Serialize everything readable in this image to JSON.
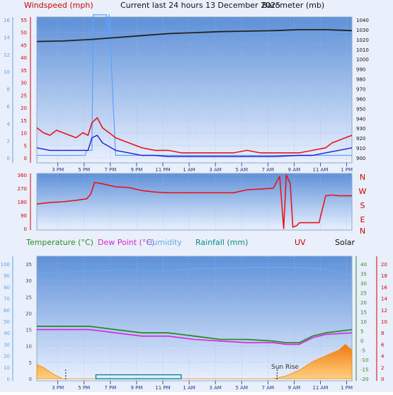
{
  "header": {
    "windspeed_label": "Windspeed (mph)",
    "title": "Current last 24 hours 13 December 2025",
    "barometer_label": "Barometer (mb)"
  },
  "legend2": {
    "temperature": "Temperature (°C)",
    "dewpoint": "Dew Point (°C)",
    "humidity": "Humidity",
    "rainfall": "Rainfall (mm)",
    "uv": "UV",
    "solar": "Solar",
    "sunrise": "Sun Rise"
  },
  "colors": {
    "bg": "#e9f0fb",
    "plot_top": "#5b8fd8",
    "plot_bottom": "#e9f0ff",
    "wind_gust": "#e8141c",
    "wind_avg": "#1a1adc",
    "wind_light": "#5aa0ff",
    "barometer": "#222222",
    "direction": "#e8141c",
    "temperature": "#2a8a2a",
    "dewpoint": "#dd22dd",
    "humidity": "#66a8ee",
    "rainfall": "#0a8a8a",
    "solar": "#f08a10",
    "axis_red": "#d00000",
    "axis_blue": "#5aa0ff",
    "axis_time": "#1a3fa0"
  },
  "chart_data": [
    {
      "type": "line",
      "name": "wind_barometer",
      "x_ticks": [
        "3 PM",
        "5 PM",
        "7 PM",
        "9 PM",
        "11 PM",
        "1 AM",
        "3 AM",
        "5 AM",
        "7 AM",
        "9 AM",
        "11 AM",
        "1 PM"
      ],
      "y_left_outer": {
        "color": "blue",
        "ticks": [
          0,
          2,
          4,
          6,
          8,
          10,
          12,
          14,
          16
        ]
      },
      "y_left_inner": {
        "color": "red",
        "ticks": [
          0,
          5,
          10,
          15,
          20,
          25,
          30,
          35,
          40,
          45,
          50,
          55
        ]
      },
      "y_right": {
        "ticks": [
          900,
          910,
          920,
          930,
          940,
          950,
          960,
          970,
          980,
          990,
          1000,
          1010,
          1020,
          1030,
          1040
        ]
      },
      "series": [
        {
          "key": "barometer",
          "x": [
            0,
            2,
            4,
            6,
            8,
            10,
            12,
            14,
            16,
            18,
            20,
            22,
            24
          ],
          "y": [
            1018,
            1018.5,
            1020,
            1022,
            1024,
            1026,
            1027,
            1028,
            1028.5,
            1029,
            1030,
            1030,
            1029
          ]
        },
        {
          "key": "gust",
          "x": [
            0,
            0.5,
            1,
            1.5,
            2,
            2.5,
            3,
            3.5,
            3.9,
            4.2,
            4.6,
            5,
            5.5,
            6,
            6.5,
            7,
            8,
            9,
            10,
            11,
            12,
            13,
            14,
            15,
            16,
            17,
            18,
            19,
            20,
            21,
            22,
            22.5,
            23,
            23.5,
            24
          ],
          "y": [
            12,
            10,
            9,
            11,
            10,
            9,
            8,
            10,
            9,
            14,
            16,
            12,
            10,
            8,
            7,
            6,
            4,
            3,
            3,
            2,
            2,
            2,
            2,
            2,
            3,
            2,
            2,
            2,
            2,
            3,
            4,
            6,
            7,
            8,
            9
          ]
        },
        {
          "key": "average",
          "x": [
            0,
            1,
            2,
            3,
            3.9,
            4.2,
            4.6,
            5,
            6,
            7,
            8,
            9,
            10,
            12,
            14,
            16,
            18,
            20,
            21,
            22,
            23,
            24
          ],
          "y": [
            4,
            3,
            3,
            3,
            3,
            8,
            9,
            6,
            3,
            2,
            1,
            1,
            0.5,
            0.5,
            0.5,
            0.5,
            0.5,
            1,
            1,
            2,
            3,
            4
          ]
        },
        {
          "key": "light_blue",
          "x": [
            0,
            3.7,
            3.8,
            4.2,
            4.3,
            4.4,
            5.3,
            5.4,
            5.5,
            6,
            24
          ],
          "y": [
            1,
            1,
            3,
            3,
            57,
            57,
            57,
            47,
            57,
            1,
            1
          ]
        }
      ]
    },
    {
      "type": "line",
      "name": "wind_direction",
      "y_left": {
        "ticks": [
          0,
          90,
          180,
          270,
          360
        ]
      },
      "y_right_labels": [
        "N",
        "W",
        "S",
        "E",
        "N"
      ],
      "series": [
        {
          "key": "direction",
          "x": [
            0,
            1,
            2,
            3,
            3.8,
            4.1,
            4.4,
            5,
            6,
            7,
            8,
            9,
            10,
            12,
            14,
            15,
            16,
            18,
            18.5,
            18.8,
            19,
            19.3,
            19.5,
            19.8,
            20,
            20.2,
            20.5,
            21.5,
            22,
            22.5,
            23,
            24
          ],
          "y": [
            165,
            175,
            180,
            190,
            200,
            230,
            310,
            300,
            280,
            275,
            255,
            245,
            240,
            240,
            240,
            240,
            260,
            270,
            350,
            0,
            360,
            300,
            10,
            20,
            40,
            40,
            40,
            40,
            220,
            225,
            220,
            220
          ]
        }
      ]
    },
    {
      "type": "area",
      "name": "temperature_rain_solar",
      "y_left_outer": {
        "color": "blue",
        "ticks": [
          0,
          10,
          20,
          30,
          40,
          50,
          60,
          70,
          80,
          90,
          100
        ]
      },
      "y_left_inner": {
        "ticks": [
          0,
          5,
          10,
          15,
          20,
          25,
          30,
          35
        ]
      },
      "y_right_inner": {
        "ticks": [
          -20,
          -15,
          -10,
          -5,
          0,
          5,
          10,
          15,
          20,
          25,
          30,
          35,
          40
        ]
      },
      "y_right_outer": {
        "ticks": [
          0,
          2,
          4,
          6,
          8,
          10,
          12,
          14,
          16,
          18,
          20
        ]
      },
      "series": [
        {
          "key": "temperature",
          "x": [
            0,
            2,
            4,
            6,
            8,
            10,
            12,
            14,
            16,
            18,
            19,
            20,
            21,
            22,
            24
          ],
          "y": [
            16,
            16,
            16,
            15,
            14,
            14,
            13,
            12,
            12,
            11.5,
            11,
            11,
            13,
            14,
            15
          ]
        },
        {
          "key": "dewpoint",
          "x": [
            0,
            2,
            4,
            6,
            8,
            10,
            12,
            14,
            16,
            18,
            19,
            20,
            21,
            22,
            24
          ],
          "y": [
            15,
            15,
            15,
            14,
            13,
            13,
            12,
            11.5,
            11,
            11,
            10.5,
            10.5,
            12.5,
            13.5,
            14
          ]
        },
        {
          "key": "humidity",
          "x": [
            0,
            6,
            10,
            12,
            16,
            20,
            22,
            24
          ],
          "y": [
            92,
            95,
            94,
            96,
            97,
            97,
            96,
            90
          ]
        },
        {
          "key": "solar",
          "x": [
            0,
            0.5,
            1,
            1.5,
            2,
            18,
            19,
            20,
            21,
            22,
            23,
            23.5,
            24
          ],
          "y": [
            2.5,
            2,
            1.2,
            0.5,
            0,
            0,
            0.5,
            1.5,
            3,
            4,
            5,
            6,
            5
          ]
        }
      ]
    }
  ]
}
